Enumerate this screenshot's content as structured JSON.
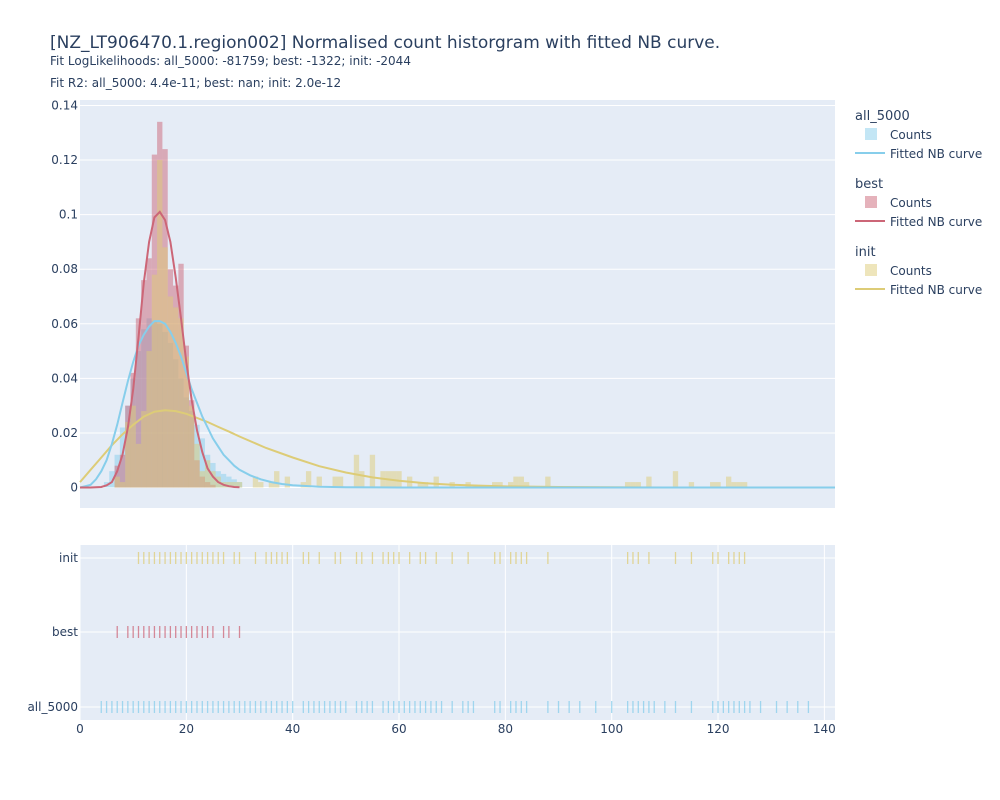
{
  "title": "[NZ_LT906470.1.region002] Normalised count historgram with fitted NB curve.",
  "subtitle_1": "Fit LogLikelihoods: all_5000: -81759; best: -1322; init: -2044",
  "subtitle_2": "Fit R2: all_5000: 4.4e-11; best: nan; init: 2.0e-12",
  "colors": {
    "all_5000": "#87ceeb",
    "best": "#cc6677",
    "init": "#ddcc77",
    "plot_bg": "#e5ecf6",
    "grid": "#ffffff",
    "text": "#2a3f5f"
  },
  "legend": [
    {
      "group": "all_5000",
      "counts": "Counts",
      "curve": "Fitted NB curve"
    },
    {
      "group": "best",
      "counts": "Counts",
      "curve": "Fitted NB curve"
    },
    {
      "group": "init",
      "counts": "Counts",
      "curve": "Fitted NB curve"
    }
  ],
  "chart_data": [
    {
      "type": "bar",
      "subtype": "histogram with fitted negative binomial curves",
      "x_ticks": [
        "0",
        "20",
        "40",
        "60",
        "80",
        "100",
        "120",
        "140"
      ],
      "y_ticks": [
        "0",
        "0.02",
        "0.04",
        "0.06",
        "0.08",
        "0.1",
        "0.12",
        "0.14"
      ],
      "xlim": [
        0,
        142
      ],
      "ylim": [
        -0.0075,
        0.142
      ],
      "grid": true,
      "legend_position": "right",
      "series": [
        {
          "name": "all_5000",
          "kind": "Counts",
          "x": [
            5,
            6,
            7,
            8,
            9,
            10,
            11,
            12,
            13,
            14,
            15,
            16,
            17,
            18,
            19,
            20,
            21,
            22,
            23,
            24,
            25,
            26,
            27,
            28,
            29,
            30
          ],
          "values": [
            0.002,
            0.006,
            0.012,
            0.022,
            0.03,
            0.04,
            0.05,
            0.058,
            0.062,
            0.061,
            0.06,
            0.057,
            0.053,
            0.047,
            0.04,
            0.033,
            0.028,
            0.023,
            0.018,
            0.012,
            0.009,
            0.006,
            0.005,
            0.004,
            0.003,
            0.002
          ]
        },
        {
          "name": "best",
          "kind": "Counts",
          "x": [
            7,
            8,
            9,
            10,
            11,
            12,
            13,
            14,
            15,
            16,
            17,
            18,
            19,
            20,
            21,
            22,
            23,
            24,
            25
          ],
          "values": [
            0.008,
            0.012,
            0.03,
            0.042,
            0.062,
            0.076,
            0.084,
            0.122,
            0.134,
            0.124,
            0.08,
            0.074,
            0.082,
            0.052,
            0.032,
            0.01,
            0.004,
            0.002,
            0.001
          ]
        },
        {
          "name": "init",
          "kind": "Counts",
          "x": [
            7,
            8,
            9,
            10,
            11,
            12,
            13,
            14,
            15,
            16,
            17,
            18,
            19,
            20,
            21,
            22,
            23,
            24,
            25,
            26,
            27,
            28,
            29,
            30,
            33,
            34,
            36,
            37,
            39,
            42,
            43,
            45,
            48,
            49,
            52,
            53,
            55,
            57,
            58,
            59,
            60,
            62,
            64,
            65,
            67,
            70,
            73,
            78,
            79,
            81,
            82,
            83,
            84,
            88,
            103,
            104,
            105,
            107,
            112,
            115,
            119,
            120,
            122,
            123,
            124,
            125
          ],
          "values": [
            0.004,
            0.002,
            0.024,
            0.03,
            0.016,
            0.028,
            0.05,
            0.078,
            0.12,
            0.088,
            0.07,
            0.066,
            0.062,
            0.048,
            0.03,
            0.016,
            0.006,
            0.01,
            0.006,
            0.004,
            0.002,
            0.002,
            0.002,
            0.002,
            0.004,
            0.002,
            0.002,
            0.006,
            0.004,
            0.002,
            0.006,
            0.004,
            0.004,
            0.004,
            0.012,
            0.006,
            0.012,
            0.006,
            0.006,
            0.006,
            0.006,
            0.004,
            0.002,
            0.002,
            0.004,
            0.002,
            0.002,
            0.002,
            0.002,
            0.002,
            0.004,
            0.004,
            0.002,
            0.004,
            0.002,
            0.002,
            0.002,
            0.004,
            0.006,
            0.002,
            0.002,
            0.002,
            0.004,
            0.002,
            0.002,
            0.002
          ]
        },
        {
          "name": "all_5000",
          "kind": "Fitted NB curve",
          "x": [
            0,
            1,
            2,
            3,
            4,
            5,
            6,
            7,
            8,
            9,
            10,
            11,
            12,
            13,
            14,
            15,
            16,
            17,
            18,
            19,
            20,
            21,
            22,
            23,
            24,
            25,
            26,
            27,
            28,
            29,
            30,
            32,
            34,
            36,
            38,
            40,
            45,
            50,
            60,
            80,
            100,
            120,
            142
          ],
          "values": [
            0,
            0.0005,
            0.001,
            0.003,
            0.006,
            0.01,
            0.016,
            0.023,
            0.031,
            0.039,
            0.046,
            0.052,
            0.056,
            0.059,
            0.061,
            0.061,
            0.06,
            0.057,
            0.053,
            0.048,
            0.042,
            0.036,
            0.031,
            0.026,
            0.022,
            0.018,
            0.015,
            0.012,
            0.01,
            0.008,
            0.0065,
            0.0045,
            0.003,
            0.002,
            0.0013,
            0.0008,
            0.0003,
            0.0001,
            0,
            0,
            0,
            0,
            0
          ]
        },
        {
          "name": "best",
          "kind": "Fitted NB curve",
          "x": [
            0,
            2,
            4,
            5,
            6,
            7,
            8,
            9,
            10,
            11,
            12,
            13,
            14,
            15,
            16,
            17,
            18,
            19,
            20,
            21,
            22,
            23,
            24,
            25,
            26,
            27,
            28,
            29,
            30
          ],
          "values": [
            0,
            0,
            0.0002,
            0.0008,
            0.002,
            0.006,
            0.012,
            0.022,
            0.036,
            0.055,
            0.075,
            0.09,
            0.099,
            0.101,
            0.098,
            0.09,
            0.077,
            0.062,
            0.046,
            0.032,
            0.021,
            0.013,
            0.007,
            0.004,
            0.002,
            0.001,
            0.0005,
            0.0002,
            0.0001
          ]
        },
        {
          "name": "init",
          "kind": "Fitted NB curve",
          "x": [
            0,
            2,
            4,
            6,
            8,
            10,
            12,
            14,
            16,
            18,
            20,
            22,
            24,
            26,
            28,
            30,
            35,
            40,
            45,
            50,
            55,
            60,
            65,
            70,
            75,
            80,
            90,
            100,
            110,
            120,
            142
          ],
          "values": [
            0.002,
            0.0065,
            0.011,
            0.0155,
            0.0195,
            0.023,
            0.026,
            0.0278,
            0.0283,
            0.028,
            0.027,
            0.0255,
            0.024,
            0.0222,
            0.0205,
            0.0187,
            0.0145,
            0.011,
            0.0078,
            0.0055,
            0.0037,
            0.0025,
            0.0016,
            0.001,
            0.0007,
            0.0004,
            0.0002,
            0.0001,
            0,
            0,
            0
          ]
        }
      ]
    },
    {
      "type": "scatter",
      "subtype": "rug plot",
      "categories": [
        "init",
        "best",
        "all_5000"
      ],
      "x_ticks": [
        "0",
        "20",
        "40",
        "60",
        "80",
        "100",
        "120",
        "140"
      ],
      "xlim": [
        0,
        142
      ],
      "series": [
        {
          "name": "init",
          "x": [
            11,
            12,
            13,
            14,
            15,
            16,
            17,
            18,
            19,
            20,
            21,
            22,
            23,
            24,
            25,
            26,
            27,
            29,
            30,
            33,
            35,
            36,
            37,
            38,
            39,
            42,
            43,
            45,
            48,
            49,
            52,
            53,
            55,
            57,
            58,
            59,
            60,
            62,
            64,
            65,
            67,
            70,
            73,
            78,
            79,
            81,
            82,
            83,
            84,
            88,
            103,
            104,
            105,
            107,
            112,
            115,
            119,
            120,
            122,
            123,
            124,
            125
          ]
        },
        {
          "name": "best",
          "x": [
            7,
            9,
            10,
            11,
            12,
            13,
            14,
            15,
            16,
            17,
            18,
            19,
            20,
            21,
            22,
            23,
            24,
            25,
            27,
            28,
            30
          ]
        },
        {
          "name": "all_5000",
          "x": [
            4,
            5,
            6,
            7,
            8,
            9,
            10,
            11,
            12,
            13,
            14,
            15,
            16,
            17,
            18,
            19,
            20,
            21,
            22,
            23,
            24,
            25,
            26,
            27,
            28,
            29,
            30,
            31,
            32,
            33,
            34,
            35,
            36,
            37,
            38,
            39,
            40,
            42,
            43,
            44,
            45,
            46,
            47,
            48,
            49,
            50,
            52,
            53,
            54,
            55,
            57,
            58,
            59,
            60,
            61,
            62,
            63,
            64,
            65,
            66,
            67,
            68,
            70,
            72,
            73,
            74,
            78,
            79,
            81,
            82,
            83,
            84,
            88,
            90,
            92,
            94,
            97,
            100,
            103,
            104,
            105,
            106,
            107,
            108,
            110,
            112,
            115,
            119,
            120,
            121,
            122,
            123,
            124,
            125,
            126,
            128,
            131,
            133,
            135,
            137
          ]
        }
      ]
    }
  ]
}
